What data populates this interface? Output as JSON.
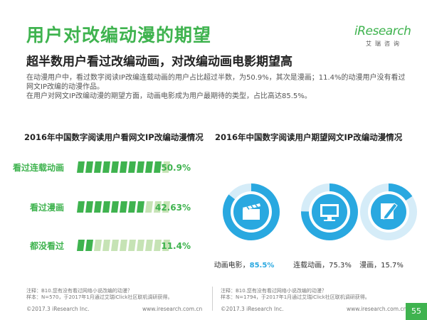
{
  "header": {
    "title": "用户对改编动漫的期望",
    "subtitle": "超半数用户看过改编动画，对改编动画电影期望高",
    "desc_line1": "在动漫用户中，看过数字阅读IP改编连载动画的用户占比超过半数，为50.9%，其次是漫画；11.4%的动漫用户没有看过",
    "desc_line2": "网文IP改编的动漫作品。",
    "desc_line3": "在用户对网文IP改编动漫的期望方面，动画电影成为用户最期待的类型，占比高达85.5%。"
  },
  "logo": {
    "word": "iResearch",
    "sub": "艾瑞咨询"
  },
  "colors": {
    "green": "#3fb34f",
    "light_green": "#c6e3b5",
    "blue": "#29a8e0",
    "light_blue": "#d5ecf8"
  },
  "chart_data": [
    {
      "type": "bar",
      "title": "2016年中国数字阅读用户看网文IP改编动漫情况",
      "categories": [
        "看过连载动画",
        "看过漫画",
        "都没看过"
      ],
      "values": [
        50.9,
        42.63,
        11.4
      ],
      "value_labels": [
        "50.9%",
        "42.63%",
        "11.4%"
      ],
      "unit": "%",
      "ylim": [
        0,
        100
      ],
      "legend": "none",
      "grid": false
    },
    {
      "type": "pie",
      "title": "2016年中国数字阅读用户期望网文IP改编动漫情况",
      "categories": [
        "动画电影",
        "连载动画",
        "漫画"
      ],
      "values": [
        85.5,
        75.3,
        15.7
      ],
      "value_labels": [
        "85.5%",
        "75.3%",
        "15.7%"
      ],
      "icons": [
        "clapperboard-icon",
        "monitor-icon",
        "pencil-icon"
      ],
      "unit": "%"
    }
  ],
  "notes": {
    "left_line1": "注释：B10.您有没有看过网络小说改编的动漫？",
    "left_line2": "样本：N=570，于2017年1月通过艾瑞iClick社区联机调研获得。",
    "right_line1": "注释：B10.您有没有看过网络小说改编的动漫？",
    "right_line2": "样本：N=1794，于2017年1月通过艾瑞iClick社区联机调研获得。"
  },
  "footer": {
    "copyright_left": "©2017.3 iResearch Inc.",
    "site_left": "www.iresearch.com.cn",
    "copyright_right": "©2017.3 iResearch Inc.",
    "site_right": "www.iresearch.com.cn",
    "page": "55"
  }
}
